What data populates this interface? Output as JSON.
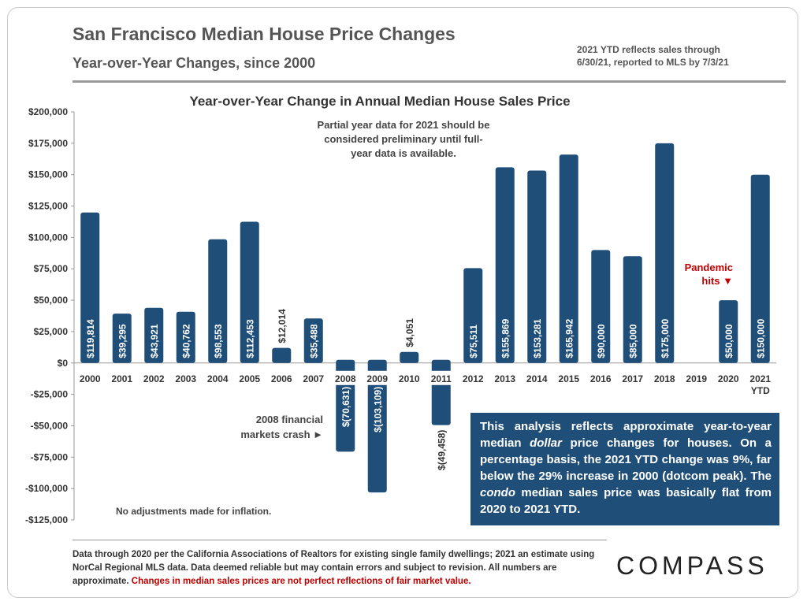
{
  "header": {
    "title": "San Francisco Median House Price Changes",
    "subtitle": "Year-over-Year Changes, since 2000",
    "note_line1": "2021 YTD reflects sales through",
    "note_line2": "6/30/21, reported to MLS by 7/3/21"
  },
  "chart_data": {
    "type": "bar",
    "title": "Year-over-Year Change in Annual Median House Sales Price",
    "categories": [
      "2000",
      "2001",
      "2002",
      "2003",
      "2004",
      "2005",
      "2006",
      "2007",
      "2008",
      "2009",
      "2010",
      "2011",
      "2012",
      "2013",
      "2014",
      "2015",
      "2016",
      "2017",
      "2018",
      "2019",
      "2020",
      "2021"
    ],
    "category_sublabels": {
      "2021": "YTD"
    },
    "values": [
      119814,
      39295,
      43921,
      40762,
      98553,
      112453,
      12014,
      35488,
      -70631,
      -103109,
      4051,
      -49458,
      75511,
      155869,
      153281,
      165942,
      90000,
      85000,
      175000,
      null,
      50000,
      150000
    ],
    "data_labels": [
      "$119,814",
      "$39,295",
      "$43,921",
      "$40,762",
      "$98,553",
      "$112,453",
      "$12,014",
      "$35,488",
      "$(70,631)",
      "$(103,109)",
      "$4,051",
      "$(49,458)",
      "$75,511",
      "$155,869",
      "$153,281",
      "$165,942",
      "$90,000",
      "$85,000",
      "$175,000",
      "",
      "$50,000",
      "$150,000"
    ],
    "yticks": [
      200000,
      175000,
      150000,
      125000,
      100000,
      75000,
      50000,
      25000,
      0,
      -25000,
      -50000,
      -75000,
      -100000,
      -125000
    ],
    "ytick_labels": [
      "$200,000",
      "$175,000",
      "$150,000",
      "$125,000",
      "$100,000",
      "$75,000",
      "$50,000",
      "$25,000",
      "$0",
      "-$25,000",
      "-$50,000",
      "-$75,000",
      "-$100,000",
      "-$125,000"
    ],
    "ylim": [
      -125000,
      200000
    ],
    "bar_color": "#1f4e79",
    "grid": false,
    "annotations": {
      "partial_year_lines": [
        "Partial year data for 2021 should be",
        "considered preliminary until full-",
        "year data is available."
      ],
      "crash_lines": [
        "2008 financial",
        "markets crash ►"
      ],
      "pandemic_lines": [
        "Pandemic",
        "hits ▼"
      ],
      "inflation": "No adjustments made for inflation."
    },
    "annotation_color": "#c00000"
  },
  "info_box": {
    "text_before_dollar": "This analysis reflects approximate year-to-year median ",
    "dollar": "dollar",
    "text_after_dollar": " price changes for houses. On a percentage basis, the 2021 YTD change was 9%, far below the 29% increase in 2000 (dotcom peak). The ",
    "condo": "condo",
    "text_after_condo": " median sales price was basically flat from 2020 to 2021 YTD."
  },
  "footer": {
    "text": "Data through 2020 per the California Associations of Realtors for existing single family dwellings; 2021 an estimate using NorCal Regional MLS data. Data deemed reliable but may contain errors and subject to revision. All numbers are approximate. ",
    "warning": "Changes in median sales prices are not perfect reflections of fair market value."
  },
  "logo": "COMPASS"
}
